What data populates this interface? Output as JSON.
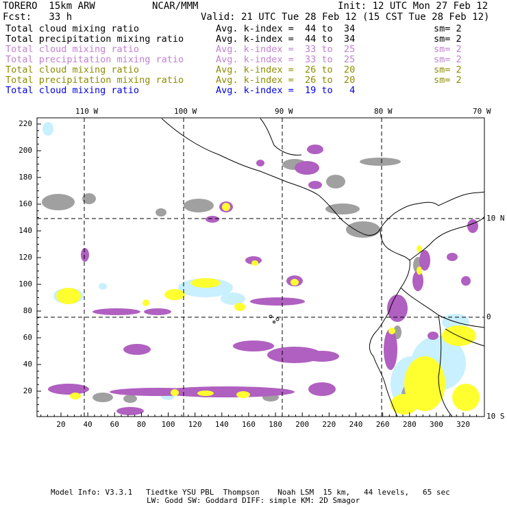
{
  "header": {
    "model": "TORERO  15km ARW",
    "org": "NCAR/MMM",
    "init": "Init: 12 UTC Mon 27 Feb 12",
    "fcst": "Fcst:   33 h",
    "valid": "Valid: 21 UTC Tue 28 Feb 12 (15 CST Tue 28 Feb 12)"
  },
  "legend": [
    {
      "field": "Total cloud mixing ratio",
      "index": "Avg. k-index =  44 to  34",
      "sm": "sm= 2",
      "color": "#000000"
    },
    {
      "field": "Total precipitation mixing ratio",
      "index": "Avg. k-index =  44 to  34",
      "sm": "sm= 2",
      "color": "#000000"
    },
    {
      "field": "Total cloud mixing ratio",
      "index": "Avg. k-index =  33 to  25",
      "sm": "sm= 2",
      "color": "#c080d0"
    },
    {
      "field": "Total precipitation mixing ratio",
      "index": "Avg. k-index =  33 to  25",
      "sm": "sm= 2",
      "color": "#c080d0"
    },
    {
      "field": "Total cloud mixing ratio",
      "index": "Avg. k-index =  26 to  20",
      "sm": "sm= 2",
      "color": "#8c8c00"
    },
    {
      "field": "Total precipitation mixing ratio",
      "index": "Avg. k-index =  26 to  20",
      "sm": "sm= 2",
      "color": "#8c8c00"
    },
    {
      "field": "Total cloud mixing ratio",
      "index": "Avg. k-index =  19 to   4",
      "sm": "",
      "color": "#0000e0"
    }
  ],
  "map": {
    "lon_labels": [
      "110 W",
      "100 W",
      "90 W",
      "80 W",
      "70 W"
    ],
    "lat_labels": [
      "10 N",
      "0",
      "10 S"
    ],
    "x_ticks": [
      "20",
      "40",
      "60",
      "80",
      "100",
      "120",
      "140",
      "160",
      "180",
      "200",
      "220",
      "240",
      "260",
      "280",
      "300",
      "320"
    ],
    "y_ticks": [
      "20",
      "40",
      "60",
      "80",
      "100",
      "120",
      "140",
      "160",
      "180",
      "200",
      "220"
    ],
    "colors": {
      "gray": "#a0a0a0",
      "purple": "#b060c0",
      "yellow": "#ffff30",
      "lightblue": "#c8f0ff"
    }
  },
  "footer": {
    "line1": "Model Info: V3.3.1   Tiedtke YSU PBL  Thompson    Noah LSM  15 km,   44 levels,   65 sec",
    "line2": "LW: Godd SW: Goddard DIFF: simple KM: 2D Smagor"
  }
}
